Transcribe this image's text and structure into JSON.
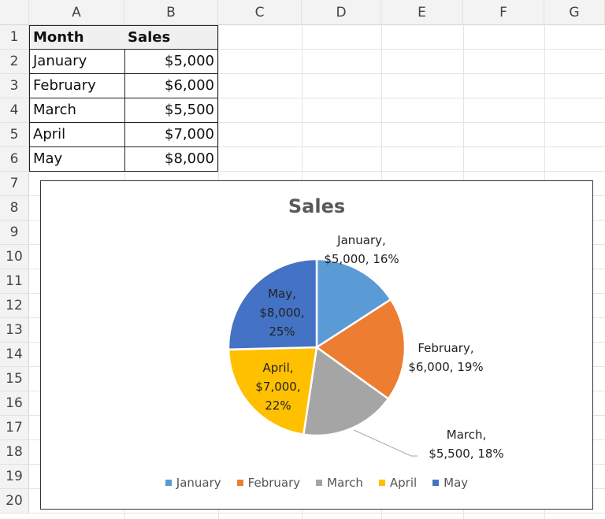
{
  "sheet": {
    "columns": [
      "A",
      "B",
      "C",
      "D",
      "E",
      "F",
      "G"
    ],
    "rows": [
      "1",
      "2",
      "3",
      "4",
      "5",
      "6",
      "7",
      "8",
      "9",
      "10",
      "11",
      "12",
      "13",
      "14",
      "15",
      "16",
      "17",
      "18",
      "19",
      "20"
    ],
    "table": {
      "headers": [
        "Month",
        "Sales"
      ],
      "rows": [
        [
          "January",
          "$5,000"
        ],
        [
          "February",
          "$6,000"
        ],
        [
          "March",
          "$5,500"
        ],
        [
          "April",
          "$7,000"
        ],
        [
          "May",
          "$8,000"
        ]
      ]
    }
  },
  "chart_data": {
    "type": "pie",
    "title": "Sales",
    "categories": [
      "January",
      "February",
      "March",
      "April",
      "May"
    ],
    "values": [
      5000,
      6000,
      5500,
      7000,
      8000
    ],
    "colors": [
      "#5B9BD5",
      "#ED7D31",
      "#A5A5A5",
      "#FFC000",
      "#4472C4"
    ],
    "data_labels": [
      [
        "January,",
        "$5,000, 16%"
      ],
      [
        "February,",
        "$6,000, 19%"
      ],
      [
        "March,",
        "$5,500, 18%"
      ],
      [
        "April,",
        "$7,000,",
        "22%"
      ],
      [
        "May,",
        "$8,000,",
        "25%"
      ]
    ],
    "legend": {
      "position": "bottom",
      "entries": [
        "January",
        "February",
        "March",
        "April",
        "May"
      ]
    }
  }
}
